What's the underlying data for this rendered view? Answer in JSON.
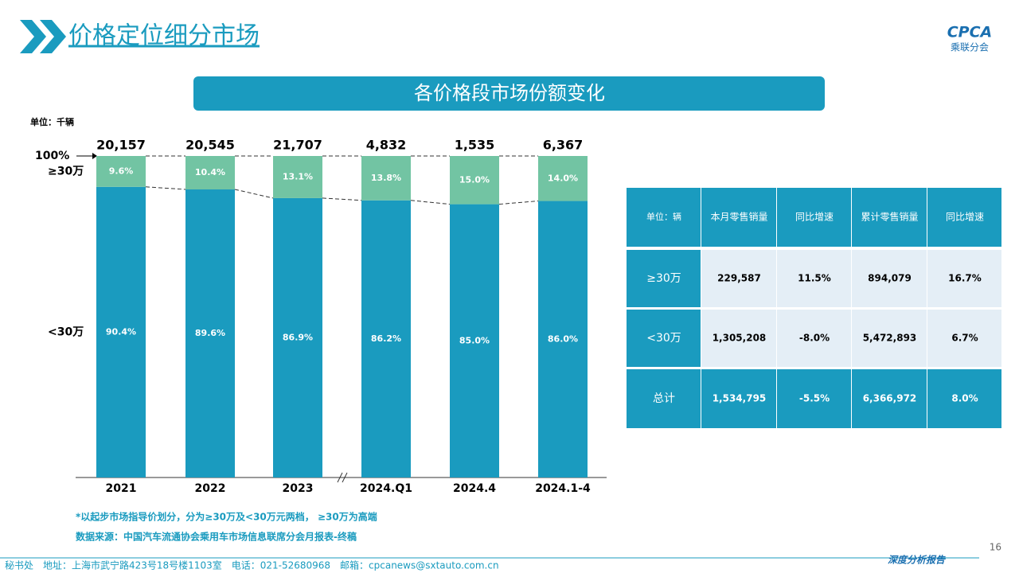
{
  "header": {
    "title": "价格定位细分市场",
    "logo": "CPCA",
    "logo_sub": "乘联分会"
  },
  "chart_data": {
    "type": "bar",
    "stacked": true,
    "title": "各价格段市场份额变化",
    "unit": "单位：千辆",
    "categories": [
      "2021",
      "2022",
      "2023",
      "2024.Q1",
      "2024.4",
      "2024.1-4"
    ],
    "series": [
      {
        "name": "<30万",
        "color": "#1a9bbf",
        "values": [
          90.4,
          89.6,
          86.9,
          86.2,
          85.0,
          86.0
        ],
        "value_labels": [
          "90.4%",
          "89.6%",
          "86.9%",
          "86.2%",
          "85.0%",
          "86.0%"
        ]
      },
      {
        "name": "≥30万",
        "color": "#72c4a3",
        "values": [
          9.6,
          10.4,
          13.1,
          13.8,
          15.0,
          14.0
        ],
        "value_labels": [
          "9.6%",
          "10.4%",
          "13.1%",
          "13.8%",
          "15.0%",
          "14.0%"
        ]
      }
    ],
    "totals": {
      "values": [
        20157,
        20545,
        21707,
        4832,
        1535,
        6367
      ],
      "value_labels": [
        "20,157",
        "20,545",
        "21,707",
        "4,832",
        "1,535",
        "6,367"
      ]
    },
    "ylim": [
      0,
      100
    ],
    "yticks": [
      {
        "value": 100,
        "label": "100%"
      }
    ]
  },
  "table": {
    "header": [
      "单位：辆",
      "本月零售销量",
      "同比增速",
      "累计零售销量",
      "同比增速"
    ],
    "rows": [
      [
        "≥30万",
        "229,587",
        "11.5%",
        "894,079",
        "16.7%"
      ],
      [
        "<30万",
        "1,305,208",
        "-8.0%",
        "5,472,893",
        "6.7%"
      ],
      [
        "总计",
        "1,534,795",
        "-5.5%",
        "6,366,972",
        "8.0%"
      ]
    ]
  },
  "notes": [
    "*以起步市场指导价划分，分为≥30万及<30万元两档， ≥30万为高端",
    "数据来源：中国汽车流通协会乘用车市场信息联席分会月报表-终稿"
  ],
  "footer": {
    "contact": "秘书处　地址：上海市武宁路423号18号楼1103室　电话：021-52680968　邮箱：cpcanews@sxtauto.com.cn",
    "tag": "深度分析报告"
  },
  "page_number": "16"
}
